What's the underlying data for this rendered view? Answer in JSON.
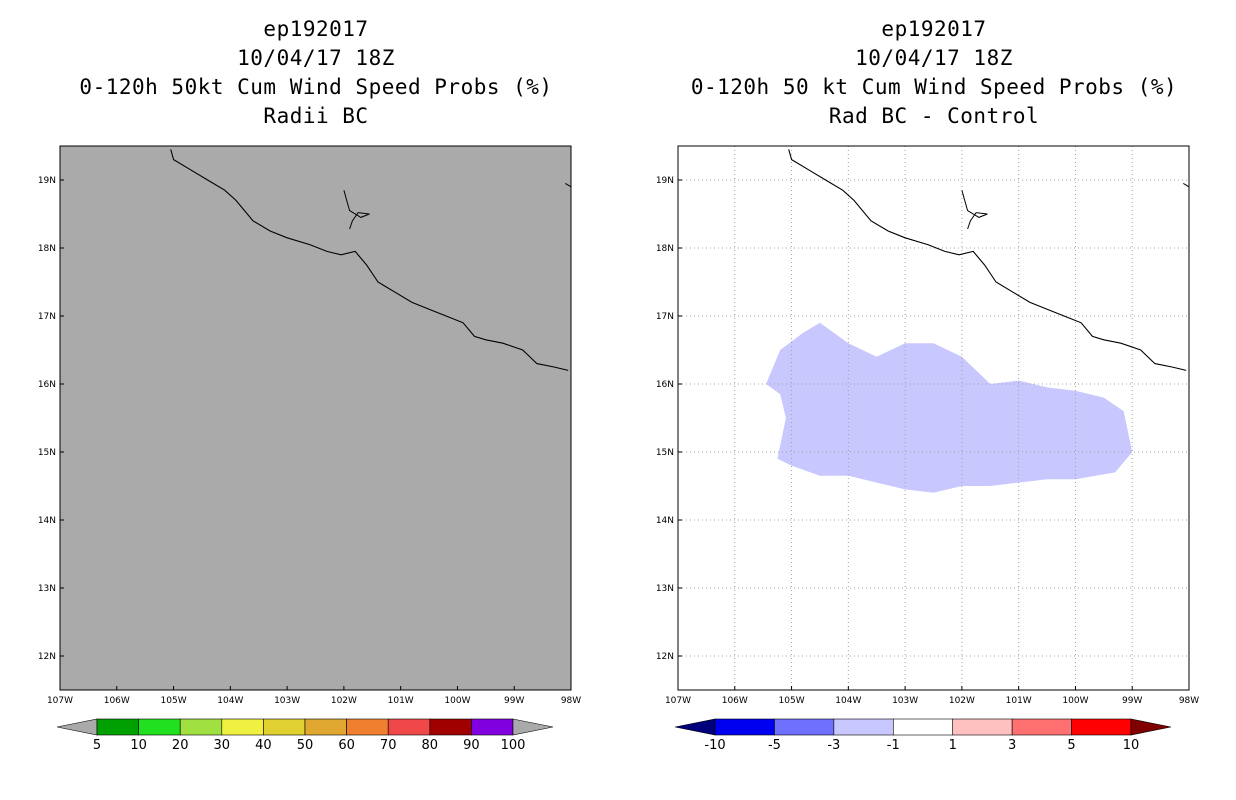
{
  "chart_data": [
    {
      "type": "heatmap",
      "title_lines": [
        "ep192017",
        "10/04/17 18Z",
        "0-120h 50kt Cum Wind Speed Probs (%)",
        "Radii BC"
      ],
      "x_ticks": [
        "107W",
        "106W",
        "105W",
        "104W",
        "103W",
        "102W",
        "101W",
        "100W",
        "99W",
        "98W"
      ],
      "y_ticks": [
        "19N",
        "18N",
        "17N",
        "16N",
        "15N",
        "14N",
        "13N",
        "12N"
      ],
      "xlim": [
        -107,
        -98
      ],
      "ylim": [
        11.5,
        19.5
      ],
      "grid": false,
      "field_fill_color": "#aaaaaa",
      "colorbar": {
        "labels": [
          "5",
          "10",
          "20",
          "30",
          "40",
          "50",
          "60",
          "70",
          "80",
          "90",
          "100"
        ],
        "colors": [
          "#aaaaaa",
          "#00a000",
          "#20e020",
          "#a0e040",
          "#f0f040",
          "#e0d030",
          "#e0a830",
          "#f08030",
          "#f04848",
          "#a00000",
          "#8000e0",
          "#aaaaaa"
        ]
      }
    },
    {
      "type": "heatmap",
      "title_lines": [
        "ep192017",
        "10/04/17 18Z",
        "0-120h 50 kt Cum Wind Speed Probs (%)",
        "Rad BC - Control"
      ],
      "x_ticks": [
        "107W",
        "106W",
        "105W",
        "104W",
        "103W",
        "102W",
        "101W",
        "100W",
        "99W",
        "98W"
      ],
      "y_ticks": [
        "19N",
        "18N",
        "17N",
        "16N",
        "15N",
        "14N",
        "13N",
        "12N"
      ],
      "xlim": [
        -107,
        -98
      ],
      "ylim": [
        11.5,
        19.5
      ],
      "grid": true,
      "region": {
        "value_range": [
          -3,
          -1
        ],
        "color": "#c8c8ff",
        "outline": [
          [
            -104.5,
            16.9
          ],
          [
            -104,
            16.6
          ],
          [
            -103.5,
            16.4
          ],
          [
            -103,
            16.6
          ],
          [
            -102.5,
            16.6
          ],
          [
            -102,
            16.4
          ],
          [
            -101.5,
            16.0
          ],
          [
            -101,
            16.05
          ],
          [
            -100.5,
            15.95
          ],
          [
            -100,
            15.9
          ],
          [
            -99.5,
            15.8
          ],
          [
            -99.15,
            15.6
          ],
          [
            -99,
            15.0
          ],
          [
            -99.3,
            14.7
          ],
          [
            -100,
            14.6
          ],
          [
            -100.5,
            14.6
          ],
          [
            -101,
            14.55
          ],
          [
            -101.5,
            14.5
          ],
          [
            -102,
            14.5
          ],
          [
            -102.5,
            14.4
          ],
          [
            -103,
            14.45
          ],
          [
            -103.5,
            14.55
          ],
          [
            -104,
            14.65
          ],
          [
            -104.5,
            14.65
          ],
          [
            -105,
            14.8
          ],
          [
            -105.25,
            14.9
          ],
          [
            -105.1,
            15.5
          ],
          [
            -105.2,
            15.85
          ],
          [
            -105.45,
            16.0
          ],
          [
            -105.2,
            16.5
          ],
          [
            -104.8,
            16.75
          ]
        ]
      },
      "colorbar": {
        "labels": [
          "-10",
          "-5",
          "-3",
          "-1",
          "1",
          "3",
          "5",
          "10"
        ],
        "colors": [
          "#00007a",
          "#0000f0",
          "#7070ff",
          "#c8c8ff",
          "#ffffff",
          "#ffc0c0",
          "#ff7070",
          "#ff0000",
          "#800000"
        ]
      }
    }
  ],
  "coastline": [
    [
      -105.05,
      19.45
    ],
    [
      -105,
      19.3
    ],
    [
      -104.7,
      19.15
    ],
    [
      -104.4,
      19.0
    ],
    [
      -104.1,
      18.85
    ],
    [
      -103.9,
      18.7
    ],
    [
      -103.6,
      18.4
    ],
    [
      -103.3,
      18.25
    ],
    [
      -103,
      18.15
    ],
    [
      -102.6,
      18.05
    ],
    [
      -102.3,
      17.95
    ],
    [
      -102.05,
      17.9
    ],
    [
      -101.8,
      17.95
    ],
    [
      -101.6,
      17.75
    ],
    [
      -101.4,
      17.5
    ],
    [
      -101.1,
      17.35
    ],
    [
      -100.8,
      17.2
    ],
    [
      -100.5,
      17.1
    ],
    [
      -100.2,
      17.0
    ],
    [
      -99.9,
      16.9
    ],
    [
      -99.7,
      16.7
    ],
    [
      -99.5,
      16.65
    ],
    [
      -99.2,
      16.6
    ],
    [
      -98.85,
      16.5
    ],
    [
      -98.6,
      16.3
    ],
    [
      -98.3,
      16.25
    ],
    [
      -98.05,
      16.2
    ]
  ],
  "lake": [
    [
      -102.0,
      18.85
    ],
    [
      -101.95,
      18.7
    ],
    [
      -101.9,
      18.55
    ],
    [
      -101.7,
      18.45
    ],
    [
      -101.55,
      18.5
    ],
    [
      -101.75,
      18.52
    ],
    [
      -101.85,
      18.4
    ],
    [
      -101.9,
      18.28
    ]
  ],
  "islet": [
    [
      -98.1,
      18.95
    ],
    [
      -98.0,
      18.9
    ]
  ]
}
